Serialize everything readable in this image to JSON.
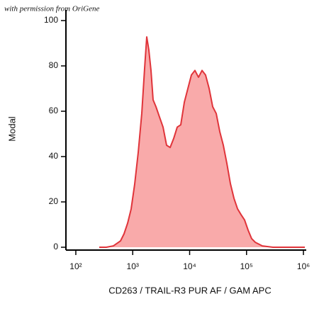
{
  "chart_data": {
    "type": "area",
    "annotation": "with permission from OriGene",
    "xlabel": "CD263 / TRAIL-R3  PUR AF / GAM APC",
    "ylabel": "Modal",
    "xscale": "log",
    "color": "#e0343a",
    "fill": "#f9aaaa",
    "x": [
      258,
      343,
      457,
      610,
      703,
      813,
      938,
      1082,
      1250,
      1442,
      1618,
      1763,
      1920,
      2094,
      2281,
      2559,
      2952,
      3411,
      3936,
      4541,
      5248,
      6053,
      6982,
      8072,
      9311,
      10740,
      12390,
      14320,
      16520,
      19050,
      22030,
      25410,
      29310,
      33880,
      39080,
      45080,
      52120,
      60120,
      69340,
      80000,
      92470,
      106700,
      123000,
      142200,
      189200,
      291100,
      447700,
      1059000
    ],
    "values": [
      0,
      0,
      0.6,
      2.8,
      5.9,
      10.6,
      16.9,
      27.8,
      41.9,
      59,
      79,
      92.8,
      87,
      78,
      65,
      62,
      57.5,
      53,
      45,
      44,
      48,
      53,
      54,
      64,
      70,
      76,
      78,
      75,
      78,
      76,
      70,
      62,
      59,
      51,
      45,
      37,
      28,
      21.6,
      17,
      14.4,
      12,
      7.5,
      3.8,
      2.2,
      0.6,
      0,
      0,
      0
    ],
    "xlim": [
      67,
      1120000
    ],
    "xticks": [
      {
        "value": 100,
        "label": "10²"
      },
      {
        "value": 1000,
        "label": "10³"
      },
      {
        "value": 10000,
        "label": "10⁴"
      },
      {
        "value": 100000,
        "label": "10⁵"
      },
      {
        "value": 1000000,
        "label": "10⁶"
      }
    ],
    "ylim": [
      -1.25,
      104.7
    ],
    "yticks": [
      0,
      20,
      40,
      60,
      80,
      100
    ]
  }
}
